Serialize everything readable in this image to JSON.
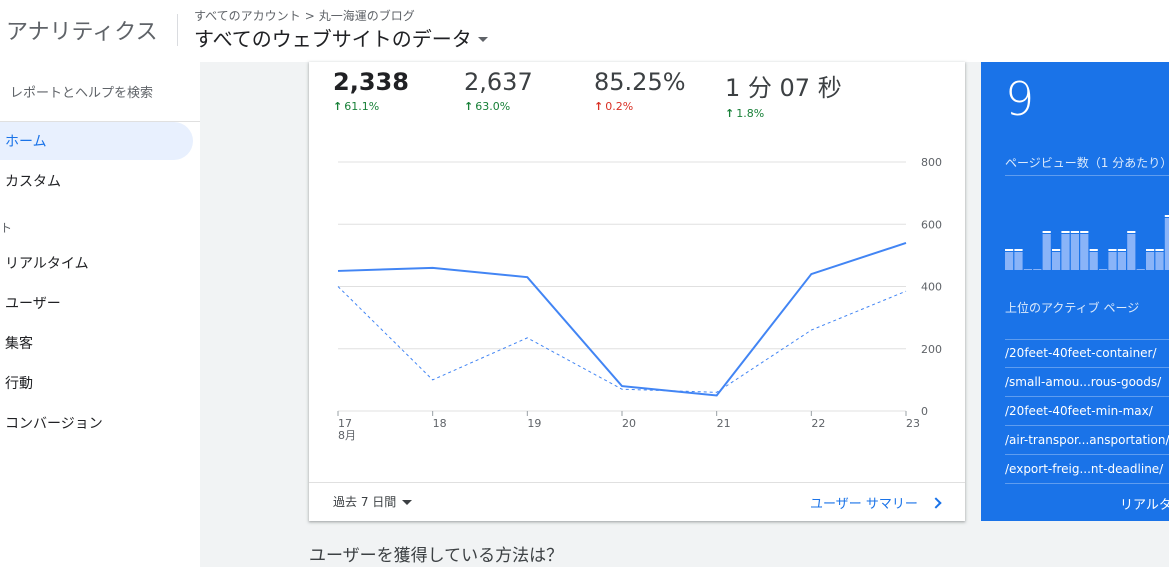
{
  "header": {
    "app_title": "アナリティクス",
    "breadcrumb_account": "すべてのアカウント",
    "breadcrumb_separator": ">",
    "breadcrumb_property": "丸一海運のブログ",
    "view_name": "すべてのウェブサイトのデータ"
  },
  "sidebar": {
    "search_placeholder": "レポートとヘルプを検索",
    "items": [
      {
        "label": "ホーム"
      },
      {
        "label": "カスタム"
      }
    ],
    "section_label": "ト",
    "report_items": [
      {
        "label": "リアルタイム"
      },
      {
        "label": "ユーザー"
      },
      {
        "label": "集客"
      },
      {
        "label": "行動"
      },
      {
        "label": "コンバージョン"
      }
    ]
  },
  "metrics": [
    {
      "value": "2,338",
      "delta": "61.1%",
      "direction": "up",
      "color": "#188038"
    },
    {
      "value": "2,637",
      "delta": "63.0%",
      "direction": "up",
      "color": "#188038"
    },
    {
      "value": "85.25%",
      "delta": "0.2%",
      "direction": "up",
      "color": "#d93025"
    },
    {
      "value": "1 分 07 秒",
      "delta": "1.8%",
      "direction": "up",
      "color": "#188038"
    }
  ],
  "chart_data": {
    "type": "line",
    "categories": [
      "17",
      "18",
      "19",
      "20",
      "21",
      "22",
      "23"
    ],
    "first_tick_sublabel": "8月",
    "y_ticks": [
      "800",
      "600",
      "400",
      "200",
      "0"
    ],
    "ylim": [
      0,
      800
    ],
    "grid": true,
    "series": [
      {
        "values": [
          450,
          460,
          430,
          80,
          50,
          440,
          540
        ],
        "style": "solid",
        "color": "#4285f4"
      },
      {
        "values": [
          400,
          100,
          235,
          70,
          60,
          260,
          385
        ],
        "style": "dashed",
        "color": "#4285f4"
      }
    ]
  },
  "card_footer": {
    "range_label": "過去 7 日間",
    "summary_link": "ユーザー サマリー"
  },
  "realtime": {
    "active_count": "9",
    "pageviews_label": "ページビュー数（1 分あたり）",
    "bar_levels": [
      0.45,
      0.45,
      0,
      0,
      0.9,
      0.45,
      0.9,
      0.9,
      0.9,
      0.45,
      0,
      0.45,
      0.45,
      0.9,
      0,
      0.45,
      0.45,
      1.3,
      1.3,
      0.45
    ],
    "top_pages_label": "上位のアクティブ ページ",
    "top_pages": [
      "/20feet-40feet-container/",
      "/small-amou...rous-goods/",
      "/20feet-40feet-min-max/",
      "/air-transpor...ansportation/",
      "/export-freig...nt-deadline/"
    ],
    "footer_link": "リアルタ"
  },
  "section_title": "ユーザーを獲得している方法は？"
}
